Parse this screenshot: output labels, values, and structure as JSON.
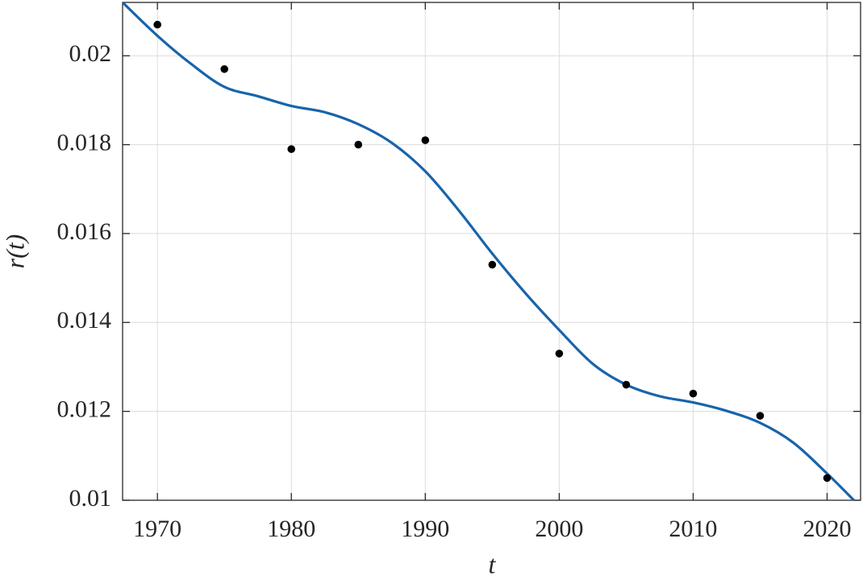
{
  "chart_data": {
    "type": "scatter",
    "xlabel": "t",
    "ylabel": "r(t)",
    "xlim": [
      1967.4,
      2022.5
    ],
    "ylim": [
      0.01,
      0.0212
    ],
    "xticks": [
      1970,
      1980,
      1990,
      2000,
      2010,
      2020
    ],
    "yticks": [
      0.01,
      0.012,
      0.014,
      0.016,
      0.018,
      0.02
    ],
    "grid": true,
    "series": [
      {
        "type": "scatter",
        "color": "#000000",
        "x": [
          1970,
          1975,
          1980,
          1985,
          1990,
          1995,
          2000,
          2005,
          2010,
          2015,
          2020
        ],
        "values": [
          0.0207,
          0.0197,
          0.0179,
          0.018,
          0.0181,
          0.0153,
          0.0133,
          0.0126,
          0.0124,
          0.0119,
          0.0105
        ]
      },
      {
        "type": "line",
        "color": "#1764ab",
        "x": [
          1967.4,
          1970,
          1972.5,
          1975,
          1977.5,
          1980,
          1982.5,
          1985,
          1987.5,
          1990,
          1992.5,
          1995,
          1997.5,
          2000,
          2002.5,
          2005,
          2007.5,
          2010,
          2012.5,
          2015,
          2017.5,
          2020,
          2022
        ],
        "values": [
          0.0212,
          0.02045,
          0.01982,
          0.0193,
          0.01909,
          0.01887,
          0.01873,
          0.01846,
          0.01804,
          0.0174,
          0.01652,
          0.01555,
          0.01465,
          0.01383,
          0.01307,
          0.0126,
          0.01234,
          0.0122,
          0.01201,
          0.01174,
          0.01129,
          0.0106,
          0.01
        ]
      }
    ]
  }
}
